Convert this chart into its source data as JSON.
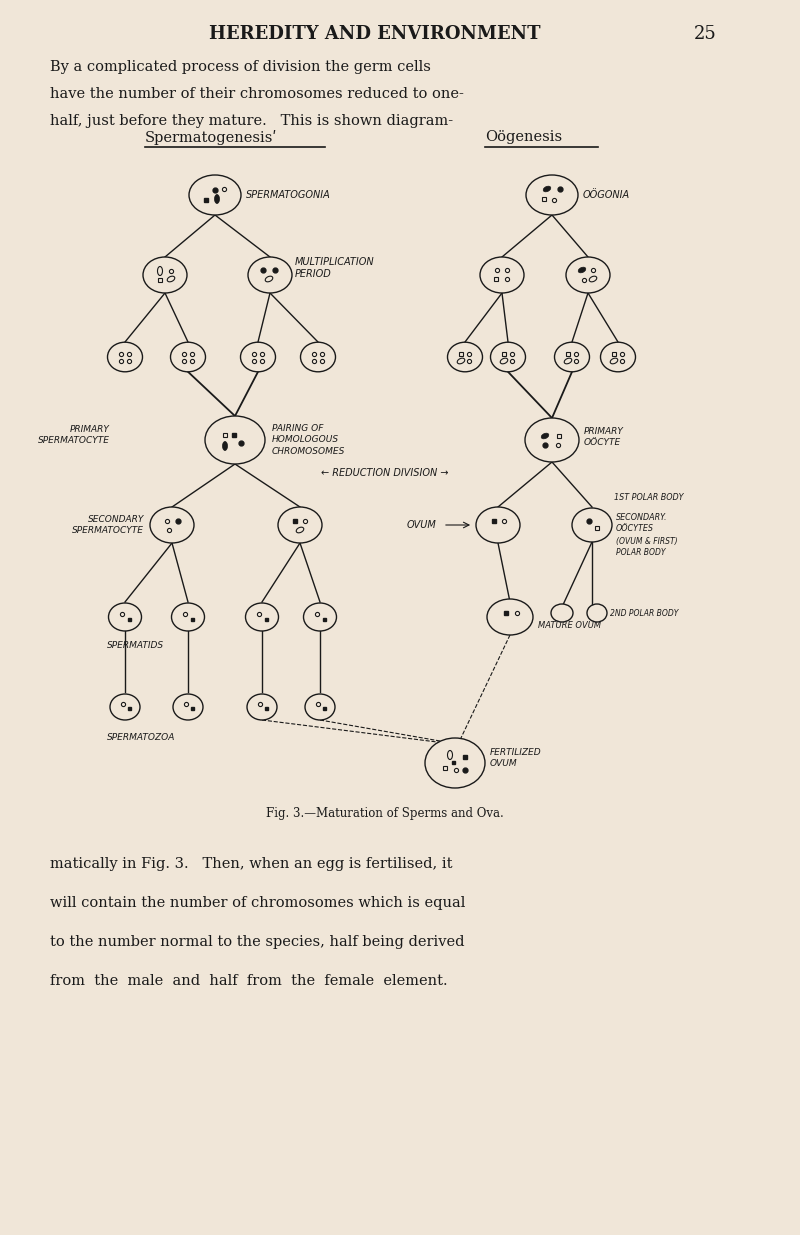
{
  "bg_color": "#f0e6d8",
  "text_color": "#1a1a1a",
  "line_color": "#1a1a1a",
  "page_title": "HEREDITY AND ENVIRONMENT",
  "page_number": "25",
  "para1_lines": [
    "By a complicated process of division the germ cells",
    "have the number of their chromosomes reduced to one-",
    "half, just before they mature.   This is shown diagram-"
  ],
  "para2_lines": [
    "matically in Fig. 3.   Then, when an egg is fertilised, it",
    "will contain the number of chromosomes which is equal",
    "to the number normal to the species, half being derived",
    "from  the  male  and  half  from  the  female  element."
  ],
  "fig_caption": "Fig. 3.—Maturation of Sperms and Ova.",
  "sperm_title": "Spermatogenesisʹ",
  "oo_title": "Oögenesis",
  "reduction_label": "← REDUCTION DIVISION →",
  "primary_sperm_label": "PRIMARY\nSPERMATOCYTE",
  "primary_oo_label": "PRIMARY\nOÖCYTE",
  "pairing_label": "PAIRING OF\nHOMOLOGOUS\nCHROMOSOMES",
  "secondary_sperm_label": "SECONDARY\nSPERMATOCYTE",
  "spermatogonia_label": "SPERMATOGONIA",
  "oogonia_label": "OÖGONIA",
  "multiplication_label": "MULTIPLICATION\nPERIOD",
  "ovum_label": "OVUM",
  "1st_polar_label": "1ST POLAR BODY",
  "secondary_oo_label": "SECONDARY.\nOÖCYTES",
  "ovum_first_label": "(OVUM & FIRST)\nPOLAR BODY",
  "spermatids_label": "SPERMATIDS",
  "2nd_polar_label": "2ND POLAR BODY",
  "mature_ovum_label": "MATURE OVUM",
  "spermatozoa_label": "SPERMATOZOA",
  "fertilized_label": "FERTILIZED\nOVUM"
}
